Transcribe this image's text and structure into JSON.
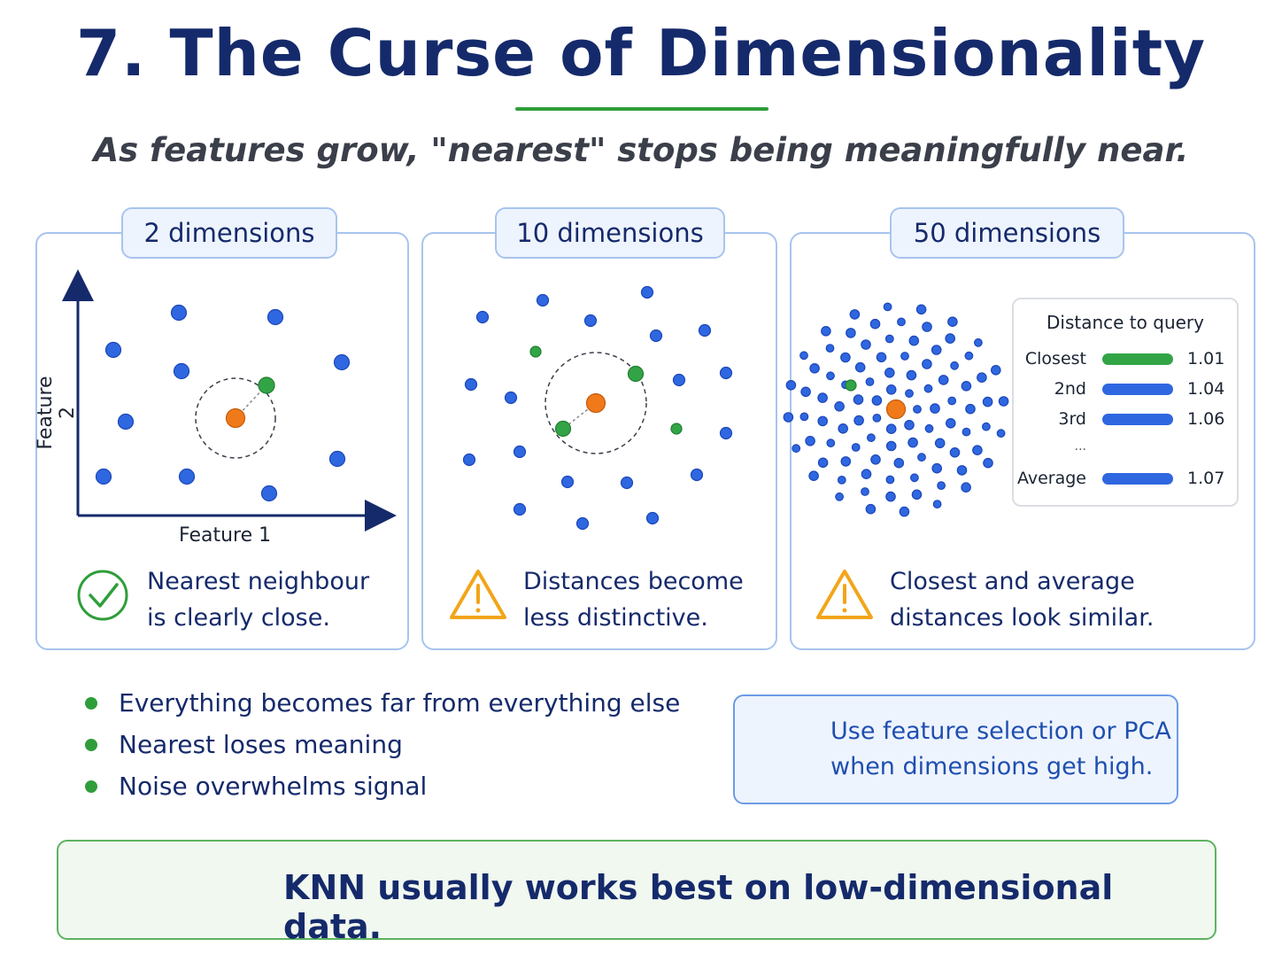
{
  "title": "7. The Curse of Dimensionality",
  "subtitle": "As features grow, \"nearest\" stops being meaningfully near.",
  "colors": {
    "navy": "#152a6b",
    "blue_point": "#2f67e0",
    "neighbour": "#33a446",
    "query": "#f07a1a",
    "warning": "#f2a51a",
    "green": "#2f9e3a"
  },
  "panels": [
    {
      "tab": "2 dimensions",
      "x_axis_label": "Feature 1",
      "y_axis_label": "Feature 2",
      "note_lines": [
        "Nearest neighbour",
        "is clearly close."
      ],
      "status_icon": "check-circle-icon"
    },
    {
      "tab": "10 dimensions",
      "note_lines": [
        "Distances become",
        "less distinctive."
      ],
      "status_icon": "warning-triangle-icon"
    },
    {
      "tab": "50 dimensions",
      "note_lines": [
        "Closest and average",
        "distances look similar."
      ],
      "status_icon": "warning-triangle-icon",
      "distance_table": {
        "title": "Distance to query",
        "rows": [
          {
            "label": "Closest",
            "value": "1.01",
            "color": "#33a446"
          },
          {
            "label": "2nd",
            "value": "1.04",
            "color": "#2f67e0"
          },
          {
            "label": "3rd",
            "value": "1.06",
            "color": "#2f67e0"
          },
          {
            "label": "Average",
            "value": "1.07",
            "color": "#2f67e0"
          }
        ],
        "ellipsis": "..."
      }
    }
  ],
  "bullets": [
    "Everything becomes far from everything else",
    "Nearest loses meaning",
    "Noise overwhelms signal"
  ],
  "tip": {
    "lines": [
      "Use feature selection or PCA",
      "when dimensions get high."
    ],
    "icon": "magnifier-icon"
  },
  "banner": {
    "text": "KNN usually works best on low-dimensional data.",
    "icon": "target-arrow-icon"
  }
}
